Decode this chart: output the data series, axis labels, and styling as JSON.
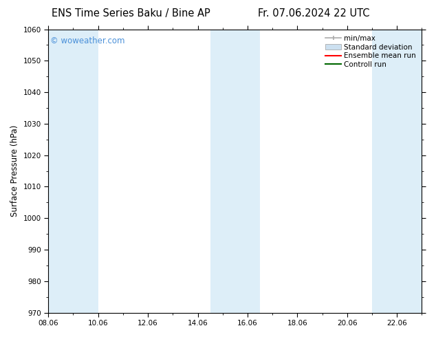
{
  "title_left": "ENS Time Series Baku / Bine AP",
  "title_right": "Fr. 07.06.2024 22 UTC",
  "ylabel": "Surface Pressure (hPa)",
  "ylim": [
    970,
    1060
  ],
  "yticks": [
    970,
    980,
    990,
    1000,
    1010,
    1020,
    1030,
    1040,
    1050,
    1060
  ],
  "xlim_start": 8.06,
  "xlim_end": 23.06,
  "xticks": [
    8.06,
    10.06,
    12.06,
    14.06,
    16.06,
    18.06,
    20.06,
    22.06
  ],
  "xtick_labels": [
    "08.06",
    "10.06",
    "12.06",
    "14.06",
    "16.06",
    "18.06",
    "20.06",
    "22.06"
  ],
  "shaded_bands": [
    {
      "x_start": 8.06,
      "x_end": 10.06
    },
    {
      "x_start": 14.56,
      "x_end": 16.56
    },
    {
      "x_start": 21.06,
      "x_end": 23.06
    }
  ],
  "band_color": "#ddeef8",
  "background_color": "#ffffff",
  "watermark_text": "© woweather.com",
  "watermark_color": "#4a90d9",
  "legend_entries": [
    {
      "label": "min/max",
      "color": "#aaaaaa",
      "style": "errorbar"
    },
    {
      "label": "Standard deviation",
      "color": "#cce0f0",
      "style": "box"
    },
    {
      "label": "Ensemble mean run",
      "color": "#ff0000",
      "style": "line"
    },
    {
      "label": "Controll run",
      "color": "#008000",
      "style": "line"
    }
  ],
  "title_fontsize": 10.5,
  "tick_fontsize": 7.5,
  "ylabel_fontsize": 8.5,
  "watermark_fontsize": 8.5,
  "legend_fontsize": 7.5
}
